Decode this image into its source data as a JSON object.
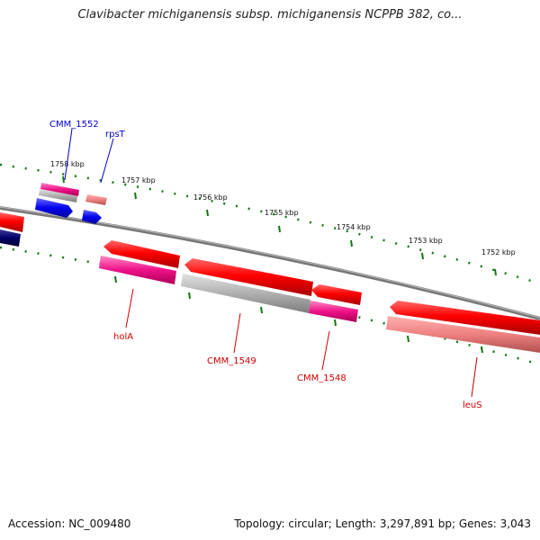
{
  "title": "Clavibacter michiganensis subsp. michiganensis NCPPB 382, co...",
  "footer": {
    "accession": "Accession: NC_009480",
    "summary": "Topology: circular; Length: 3,297,891 bp; Genes: 3,043"
  },
  "scale_labels": [
    "1758 kbp",
    "1757 kbp",
    "1756 kbp",
    "1755 kbp",
    "1754 kbp",
    "1753 kbp",
    "1752 kbp"
  ],
  "gene_labels": {
    "top": [
      "CMM_1552",
      "rpsT"
    ],
    "bottom": [
      "holA",
      "CMM_1549",
      "CMM_1548",
      "leuS"
    ]
  },
  "colors": {
    "forward_cds": "#0000ee",
    "forward_dark": "#000066",
    "reverse_cds": "#ee0000",
    "rna_magenta": "#ee1188",
    "pseudo_grey": "#aaaaaa",
    "salmon": "#ee7777",
    "backbone": "#777777",
    "ticks": "#117711",
    "top_label": "#0000cc",
    "bottom_label": "#cc0000"
  }
}
